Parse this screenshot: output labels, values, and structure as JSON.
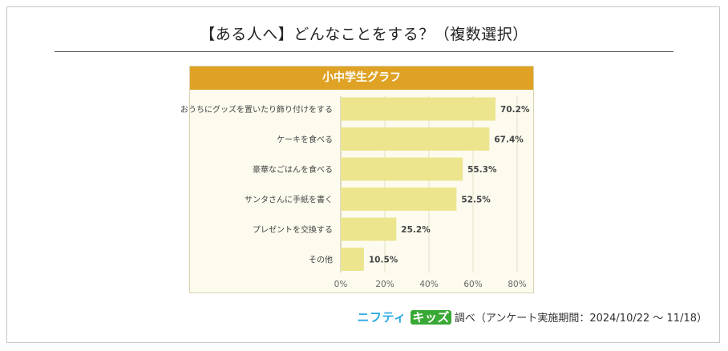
{
  "page": {
    "title": "【ある人へ】どんなことをする？（複数選択）",
    "footer_logo_part1": "ニフティ",
    "footer_logo_part2": "キッズ",
    "footer_text": "調べ（アンケート実施期間：2024/10/22 ～ 11/18）"
  },
  "chart_data": {
    "type": "bar",
    "orientation": "horizontal",
    "title": "小中学生グラフ",
    "categories": [
      "おうちにグッズを置いたり飾り付けをする",
      "ケーキを食べる",
      "豪華なごはんを食べる",
      "サンタさんに手紙を書く",
      "プレゼントを交換する",
      "その他"
    ],
    "values": [
      70.2,
      67.4,
      55.3,
      52.5,
      25.2,
      10.5
    ],
    "value_labels": [
      "70.2%",
      "67.4%",
      "55.3%",
      "52.5%",
      "25.2%",
      "10.5%"
    ],
    "xlim": [
      0,
      80
    ],
    "xticks": [
      "0%",
      "20%",
      "40%",
      "60%",
      "80%"
    ],
    "grid": true,
    "bar_color": "#ece58e",
    "header_color": "#e0a225"
  }
}
